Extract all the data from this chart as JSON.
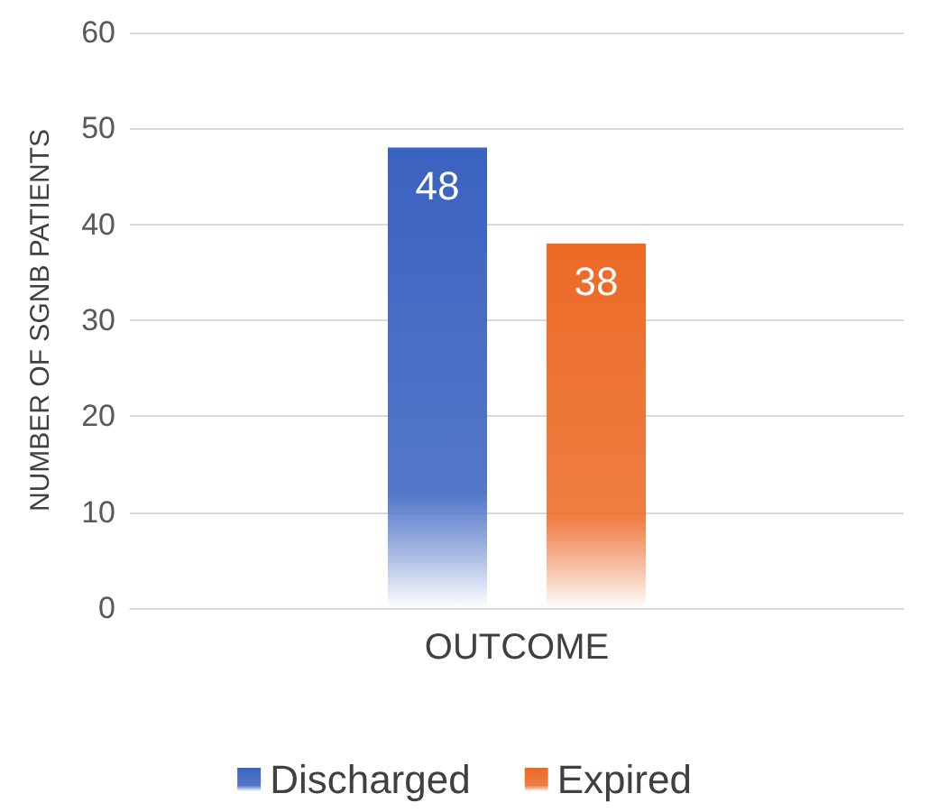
{
  "chart_data": {
    "type": "bar",
    "ylabel": "NUMBER OF SGNB PATIENTS",
    "categories": [
      "OUTCOME"
    ],
    "series": [
      {
        "name": "Discharged",
        "color": "#3a62c0",
        "values": [
          48
        ]
      },
      {
        "name": "Expired",
        "color": "#ec6a26",
        "values": [
          38
        ]
      }
    ],
    "ylim": [
      0,
      60
    ],
    "yticks": [
      0,
      10,
      20,
      30,
      40,
      50,
      60
    ],
    "grid": "y",
    "legend": "bottom",
    "data_labels": true
  }
}
